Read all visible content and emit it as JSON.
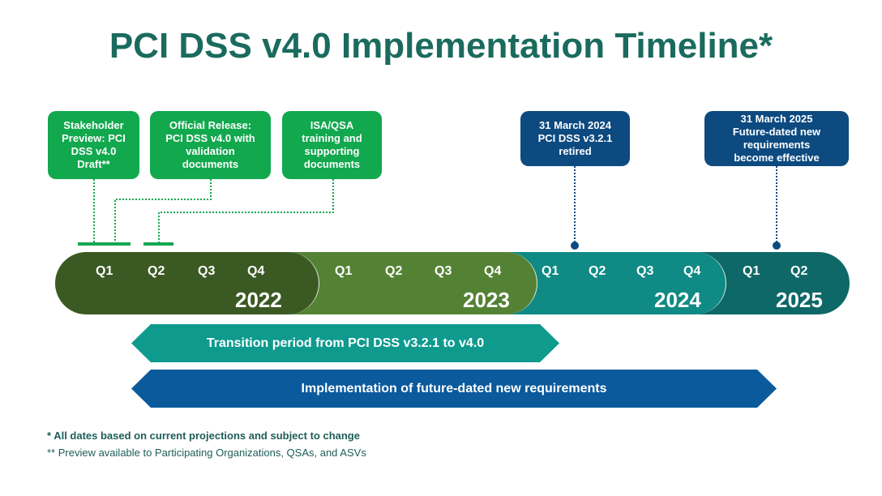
{
  "title": "PCI DSS v4.0 Implementation Timeline*",
  "milestones_green": [
    {
      "text": "Stakeholder\nPreview: PCI\nDSS v4.0\nDraft**"
    },
    {
      "text": "Official Release:\nPCI DSS v4.0 with\nvalidation\ndocuments"
    },
    {
      "text": "ISA/QSA\ntraining and\nsupporting\ndocuments"
    }
  ],
  "milestones_blue": [
    {
      "text": "31 March 2024\nPCI DSS v3.2.1\nretired"
    },
    {
      "text": "31 March 2025\nFuture-dated new\nrequirements\nbecome effective"
    }
  ],
  "years": [
    {
      "year": "2022",
      "quarters": [
        "Q1",
        "Q2",
        "Q3",
        "Q4"
      ],
      "color": "#3b5a23"
    },
    {
      "year": "2023",
      "quarters": [
        "Q1",
        "Q2",
        "Q3",
        "Q4"
      ],
      "color": "#548235"
    },
    {
      "year": "2024",
      "quarters": [
        "Q1",
        "Q2",
        "Q3",
        "Q4"
      ],
      "color": "#0f8a84"
    },
    {
      "year": "2025",
      "quarters": [
        "Q1",
        "Q2"
      ],
      "color": "#0e6867"
    }
  ],
  "periods": [
    {
      "label": "Transition period from PCI DSS v3.2.1 to v4.0",
      "color": "#0f9a8e"
    },
    {
      "label": "Implementation of future-dated new requirements",
      "color": "#0b5a9c"
    }
  ],
  "footnotes": [
    "* All dates based on current projections and subject to change",
    "** Preview available to Participating Organizations, QSAs, and ASVs"
  ]
}
